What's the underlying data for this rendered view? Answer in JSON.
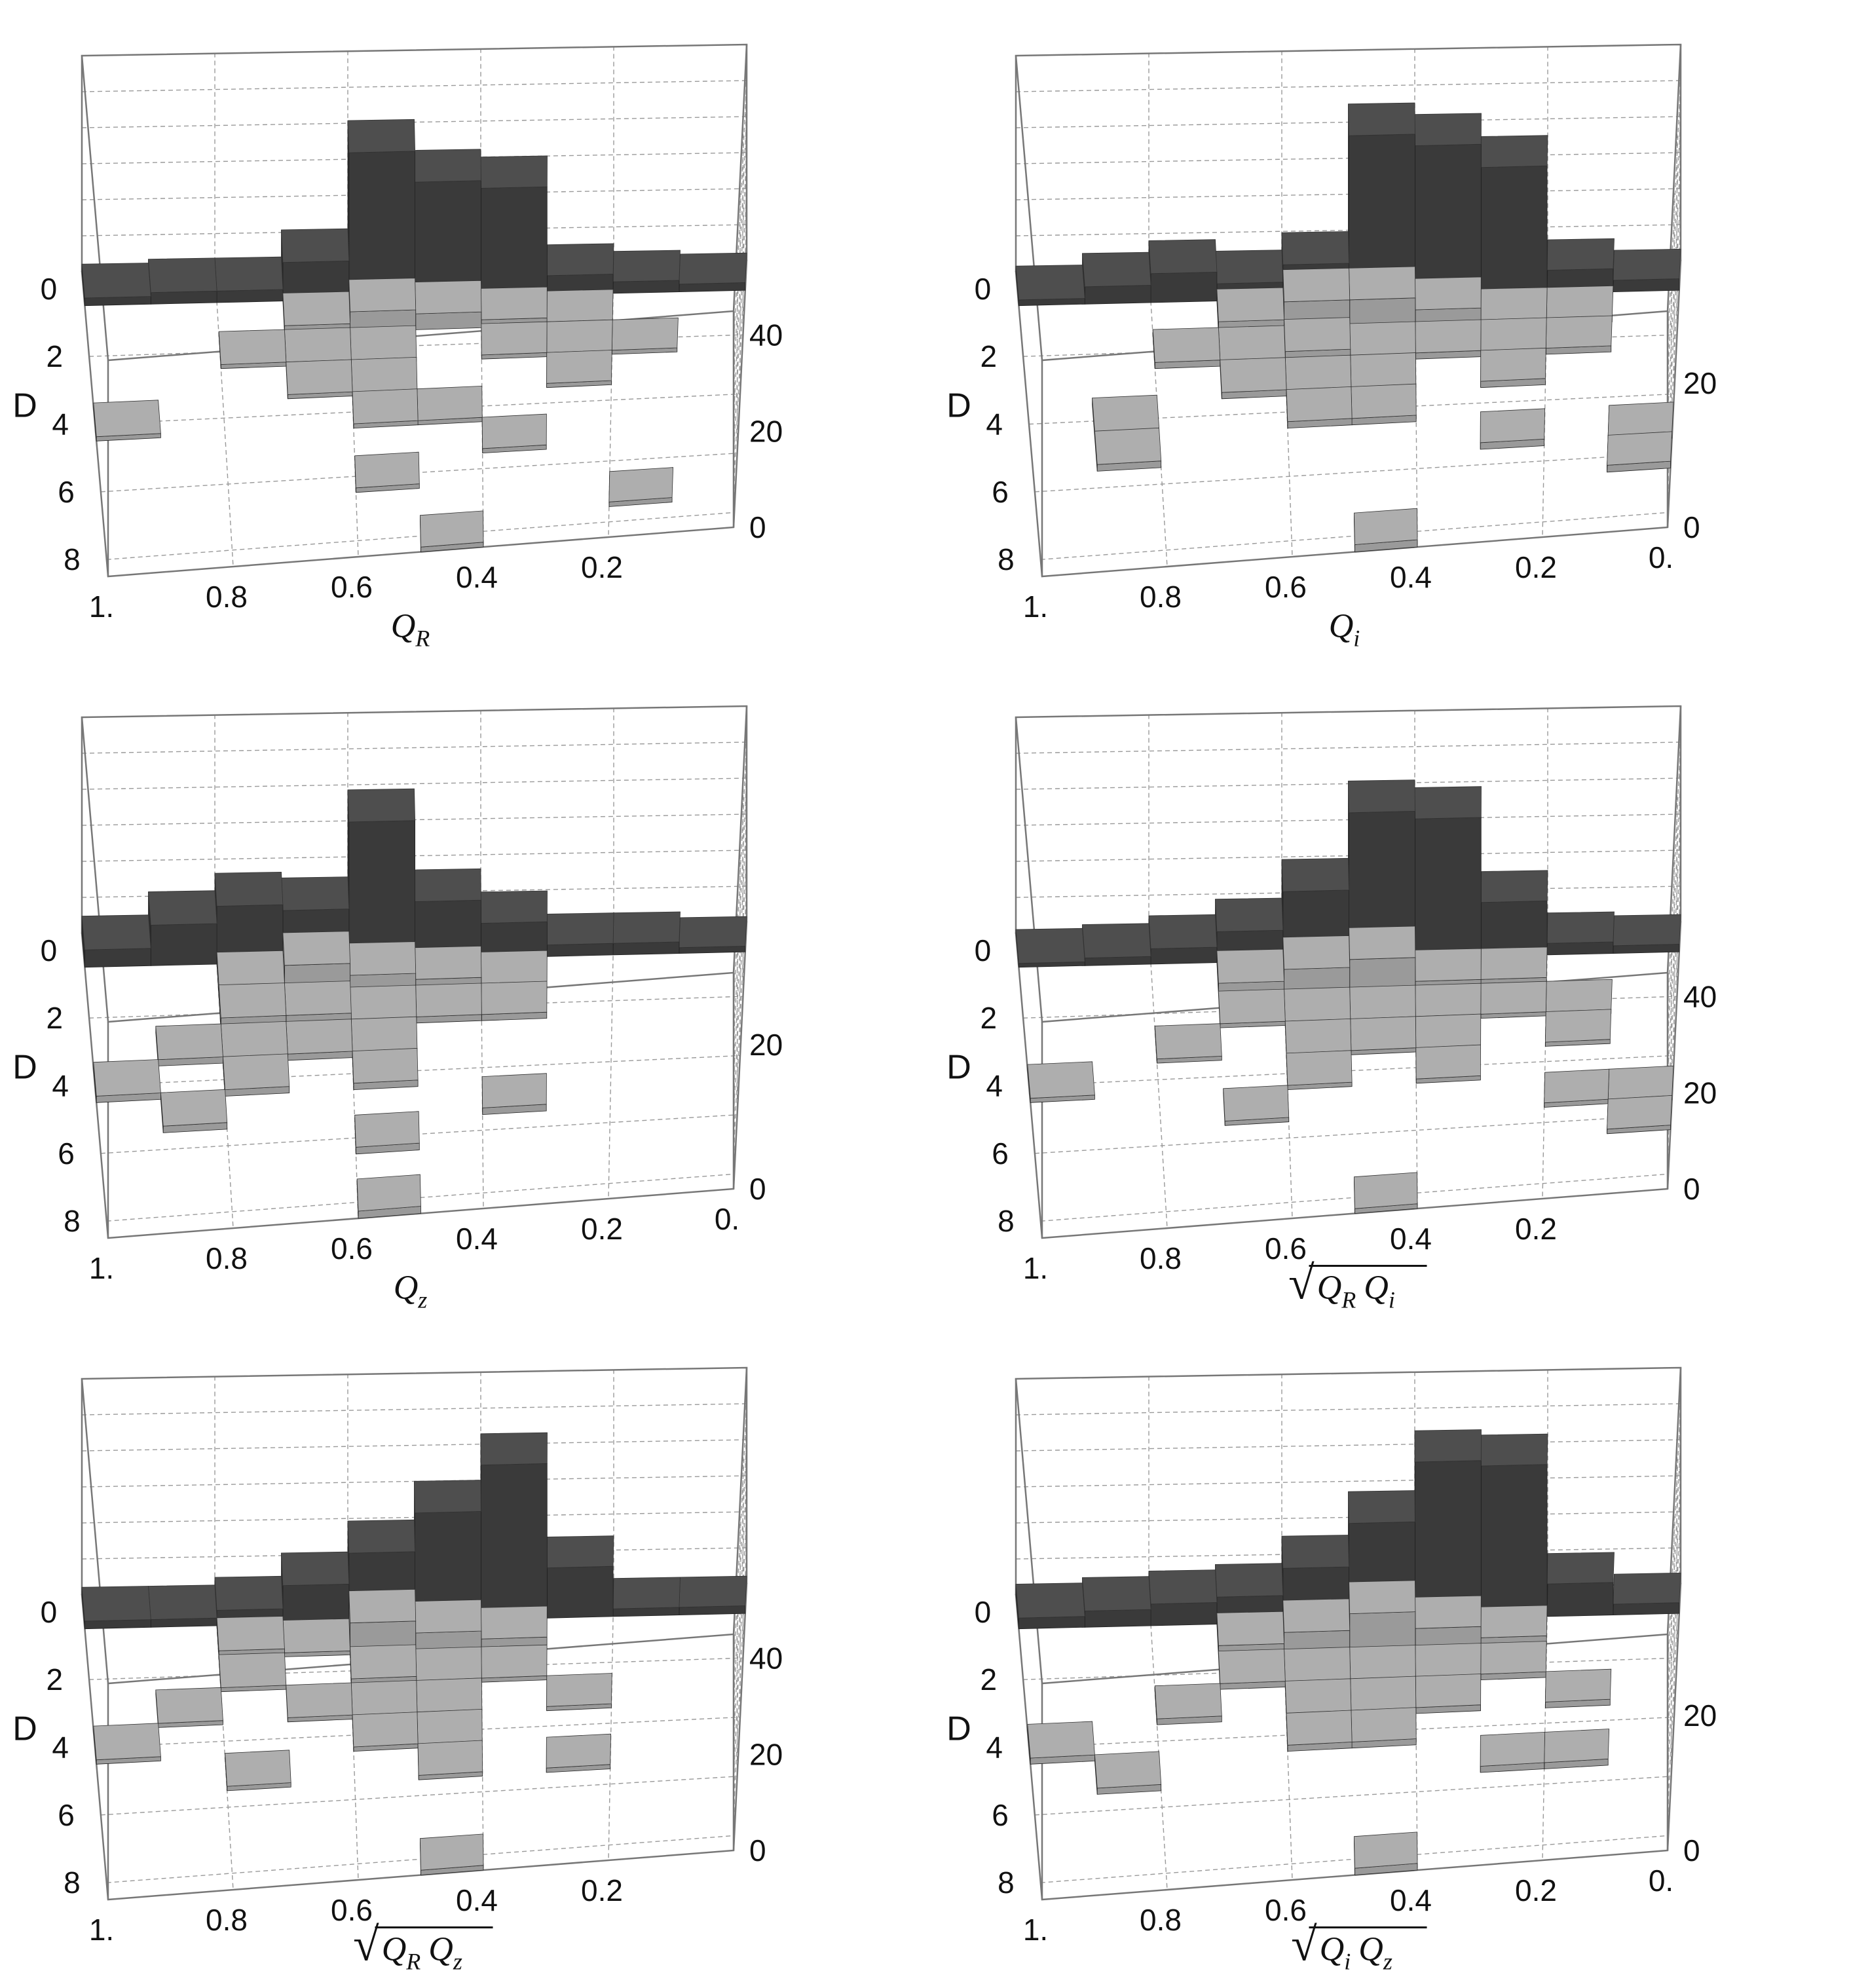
{
  "chart_data": [
    {
      "type": "bar3d",
      "xlabel_parts": [
        "Q",
        "R"
      ],
      "ylabel": "D",
      "x_ticks": [
        "1.",
        "0.8",
        "0.6",
        "0.4",
        "0.2"
      ],
      "y_ticks": [
        "0",
        "2",
        "4",
        "6",
        "8"
      ],
      "z_ticks": [
        "0",
        "20",
        "40"
      ],
      "zlim": [
        0,
        45
      ],
      "x_bins": [
        1.0,
        0.9,
        0.8,
        0.7,
        0.6,
        0.5,
        0.4,
        0.3,
        0.2,
        0.1
      ],
      "series": [
        {
          "name": "D=0",
          "row": 0,
          "values": [
            2,
            3,
            3,
            10,
            38,
            30,
            28,
            5,
            3,
            2
          ]
        },
        {
          "name": "D>0",
          "cells": [
            [
              0.7,
              1,
              2
            ],
            [
              0.6,
              1,
              5
            ],
            [
              0.5,
              1,
              4
            ],
            [
              0.4,
              1,
              2
            ],
            [
              0.3,
              1,
              1
            ],
            [
              0.8,
              2,
              1
            ],
            [
              0.7,
              2,
              1
            ],
            [
              0.6,
              2,
              1
            ],
            [
              0.4,
              2,
              1
            ],
            [
              0.3,
              2,
              1
            ],
            [
              0.2,
              2,
              1
            ],
            [
              0.7,
              3,
              1
            ],
            [
              0.6,
              3,
              1
            ],
            [
              0.3,
              3,
              1
            ],
            [
              1.0,
              4,
              1
            ],
            [
              0.6,
              4,
              1
            ],
            [
              0.5,
              4,
              1
            ],
            [
              0.4,
              5,
              1
            ],
            [
              0.6,
              6,
              1
            ],
            [
              0.2,
              7,
              1
            ],
            [
              0.5,
              8,
              1
            ]
          ]
        }
      ]
    },
    {
      "type": "bar3d",
      "xlabel_parts": [
        "Q",
        "i"
      ],
      "ylabel": "D",
      "x_ticks": [
        "1.",
        "0.8",
        "0.6",
        "0.4",
        "0.2",
        "0."
      ],
      "y_ticks": [
        "0",
        "2",
        "4",
        "6",
        "8"
      ],
      "z_ticks": [
        "0",
        "20"
      ],
      "zlim": [
        0,
        30
      ],
      "x_bins": [
        1.0,
        0.9,
        0.8,
        0.7,
        0.6,
        0.5,
        0.4,
        0.3,
        0.2,
        0.1
      ],
      "series": [
        {
          "name": "D=0",
          "row": 0,
          "values": [
            1,
            3,
            5,
            3,
            6,
            28,
            26,
            22,
            4,
            2
          ]
        },
        {
          "name": "D>0",
          "cells": [
            [
              0.7,
              1,
              2
            ],
            [
              0.6,
              1,
              5
            ],
            [
              0.5,
              1,
              5
            ],
            [
              0.4,
              1,
              3
            ],
            [
              0.3,
              1,
              1
            ],
            [
              0.2,
              1,
              1
            ],
            [
              0.8,
              2,
              1
            ],
            [
              0.7,
              2,
              1
            ],
            [
              0.6,
              2,
              2
            ],
            [
              0.5,
              2,
              1
            ],
            [
              0.4,
              2,
              1
            ],
            [
              0.3,
              2,
              1
            ],
            [
              0.2,
              2,
              1
            ],
            [
              0.7,
              3,
              1
            ],
            [
              0.6,
              3,
              1
            ],
            [
              0.5,
              3,
              1
            ],
            [
              0.3,
              3,
              1
            ],
            [
              0.9,
              4,
              1
            ],
            [
              0.6,
              4,
              1
            ],
            [
              0.5,
              4,
              1
            ],
            [
              0.9,
              5,
              1
            ],
            [
              0.3,
              5,
              1
            ],
            [
              0.1,
              5,
              1
            ],
            [
              0.1,
              6,
              1
            ],
            [
              0.5,
              8,
              1
            ]
          ]
        }
      ]
    },
    {
      "type": "bar3d",
      "xlabel_parts": [
        "Q",
        "z"
      ],
      "ylabel": "D",
      "x_ticks": [
        "1.",
        "0.8",
        "0.6",
        "0.4",
        "0.2",
        "0."
      ],
      "y_ticks": [
        "0",
        "2",
        "4",
        "6",
        "8"
      ],
      "z_ticks": [
        "0",
        "20"
      ],
      "zlim": [
        0,
        30
      ],
      "x_bins": [
        1.0,
        0.9,
        0.8,
        0.7,
        0.6,
        0.5,
        0.4,
        0.3,
        0.2,
        0.1
      ],
      "series": [
        {
          "name": "D=0",
          "row": 0,
          "values": [
            3,
            7,
            10,
            9,
            24,
            10,
            6,
            2,
            2,
            1
          ]
        },
        {
          "name": "D>0",
          "cells": [
            [
              0.8,
              1,
              2
            ],
            [
              0.7,
              1,
              5
            ],
            [
              0.6,
              1,
              3
            ],
            [
              0.5,
              1,
              2
            ],
            [
              0.4,
              1,
              1
            ],
            [
              0.8,
              2,
              2
            ],
            [
              0.7,
              2,
              2
            ],
            [
              0.6,
              2,
              1
            ],
            [
              0.5,
              2,
              1
            ],
            [
              0.4,
              2,
              1
            ],
            [
              0.9,
              3,
              1
            ],
            [
              0.8,
              3,
              1
            ],
            [
              0.7,
              3,
              1
            ],
            [
              0.6,
              3,
              1
            ],
            [
              1.0,
              4,
              1
            ],
            [
              0.8,
              4,
              1
            ],
            [
              0.6,
              4,
              1
            ],
            [
              0.9,
              5,
              1
            ],
            [
              0.6,
              6,
              1
            ],
            [
              0.4,
              5,
              1
            ],
            [
              0.6,
              8,
              1
            ]
          ]
        }
      ]
    },
    {
      "type": "bar3d",
      "xlabel_parts": [
        "√",
        "Q",
        "R",
        "Q",
        "i"
      ],
      "ylabel": "D",
      "x_ticks": [
        "1.",
        "0.8",
        "0.6",
        "0.4",
        "0.2"
      ],
      "y_ticks": [
        "0",
        "2",
        "4",
        "6",
        "8"
      ],
      "z_ticks": [
        "0",
        "20",
        "40"
      ],
      "zlim": [
        0,
        45
      ],
      "x_bins": [
        1.0,
        0.9,
        0.8,
        0.7,
        0.6,
        0.5,
        0.4,
        0.3,
        0.2,
        0.1
      ],
      "series": [
        {
          "name": "D=0",
          "row": 0,
          "values": [
            1,
            2,
            4,
            8,
            18,
            38,
            36,
            14,
            3,
            2
          ]
        },
        {
          "name": "D>0",
          "cells": [
            [
              0.7,
              1,
              3
            ],
            [
              0.6,
              1,
              6
            ],
            [
              0.5,
              1,
              8
            ],
            [
              0.4,
              1,
              2
            ],
            [
              0.3,
              1,
              2
            ],
            [
              0.7,
              2,
              1
            ],
            [
              0.6,
              2,
              1
            ],
            [
              0.5,
              2,
              1
            ],
            [
              0.4,
              2,
              1
            ],
            [
              0.3,
              2,
              1
            ],
            [
              0.2,
              2,
              1
            ],
            [
              0.8,
              3,
              1
            ],
            [
              0.6,
              3,
              1
            ],
            [
              0.5,
              3,
              1
            ],
            [
              0.4,
              3,
              1
            ],
            [
              0.2,
              3,
              1
            ],
            [
              1.0,
              4,
              1
            ],
            [
              0.6,
              4,
              1
            ],
            [
              0.4,
              4,
              1
            ],
            [
              0.7,
              5,
              1
            ],
            [
              0.2,
              5,
              1
            ],
            [
              0.1,
              5,
              1
            ],
            [
              0.1,
              6,
              1
            ],
            [
              0.5,
              8,
              1
            ]
          ]
        }
      ]
    },
    {
      "type": "bar3d",
      "xlabel_parts": [
        "√",
        "Q",
        "R",
        "Q",
        "z"
      ],
      "ylabel": "D",
      "x_ticks": [
        "1.",
        "0.8",
        "0.6",
        "0.4",
        "0.2"
      ],
      "y_ticks": [
        "0",
        "2",
        "4",
        "6",
        "8"
      ],
      "z_ticks": [
        "0",
        "20",
        "40"
      ],
      "zlim": [
        0,
        45
      ],
      "x_bins": [
        1.0,
        0.9,
        0.8,
        0.7,
        0.6,
        0.5,
        0.4,
        0.3,
        0.2,
        0.1
      ],
      "series": [
        {
          "name": "D=0",
          "row": 0,
          "values": [
            2,
            2,
            4,
            10,
            18,
            28,
            40,
            13,
            2,
            2
          ]
        },
        {
          "name": "D>0",
          "cells": [
            [
              0.8,
              1,
              2
            ],
            [
              0.7,
              1,
              1
            ],
            [
              0.6,
              1,
              8
            ],
            [
              0.5,
              1,
              5
            ],
            [
              0.4,
              1,
              3
            ],
            [
              0.8,
              2,
              1
            ],
            [
              0.6,
              2,
              2
            ],
            [
              0.5,
              2,
              1
            ],
            [
              0.4,
              2,
              1
            ],
            [
              0.9,
              3,
              1
            ],
            [
              0.7,
              3,
              1
            ],
            [
              0.6,
              3,
              1
            ],
            [
              0.5,
              3,
              1
            ],
            [
              0.3,
              3,
              1
            ],
            [
              1.0,
              4,
              1
            ],
            [
              0.6,
              4,
              1
            ],
            [
              0.5,
              4,
              1
            ],
            [
              0.8,
              5,
              1
            ],
            [
              0.5,
              5,
              1
            ],
            [
              0.3,
              5,
              1
            ],
            [
              0.5,
              8,
              1
            ]
          ]
        }
      ]
    },
    {
      "type": "bar3d",
      "xlabel_parts": [
        "√",
        "Q",
        "i",
        "Q",
        "z"
      ],
      "ylabel": "D",
      "x_ticks": [
        "1.",
        "0.8",
        "0.6",
        "0.4",
        "0.2",
        "0."
      ],
      "y_ticks": [
        "0",
        "2",
        "4",
        "6",
        "8"
      ],
      "z_ticks": [
        "0",
        "20"
      ],
      "zlim": [
        0,
        32
      ],
      "x_bins": [
        1.0,
        0.9,
        0.8,
        0.7,
        0.6,
        0.5,
        0.4,
        0.3,
        0.2,
        0.1
      ],
      "series": [
        {
          "name": "D=0",
          "row": 0,
          "values": [
            2,
            3,
            4,
            5,
            10,
            18,
            29,
            28,
            6,
            2
          ]
        },
        {
          "name": "D>0",
          "cells": [
            [
              0.7,
              1,
              2
            ],
            [
              0.6,
              1,
              4
            ],
            [
              0.5,
              1,
              7
            ],
            [
              0.4,
              1,
              4
            ],
            [
              0.3,
              1,
              2
            ],
            [
              0.7,
              2,
              1
            ],
            [
              0.6,
              2,
              1
            ],
            [
              0.5,
              2,
              1
            ],
            [
              0.4,
              2,
              1
            ],
            [
              0.3,
              2,
              1
            ],
            [
              0.8,
              3,
              1
            ],
            [
              0.6,
              3,
              1
            ],
            [
              0.5,
              3,
              1
            ],
            [
              0.4,
              3,
              1
            ],
            [
              0.2,
              3,
              1
            ],
            [
              1.0,
              4,
              1
            ],
            [
              0.6,
              4,
              1
            ],
            [
              0.5,
              4,
              1
            ],
            [
              0.9,
              5,
              1
            ],
            [
              0.3,
              5,
              1
            ],
            [
              0.2,
              5,
              1
            ],
            [
              0.5,
              8,
              1
            ]
          ]
        }
      ]
    }
  ],
  "colors": {
    "bar_dark_top": "#4e4e4e",
    "bar_dark_front": "#3a3a3a",
    "bar_dark_side": "#2c2c2c",
    "bar_light_top": "#aeaeae",
    "bar_light_front": "#9a9a9a",
    "bar_light_side": "#808080",
    "grid": "#999999",
    "box": "#777777"
  }
}
